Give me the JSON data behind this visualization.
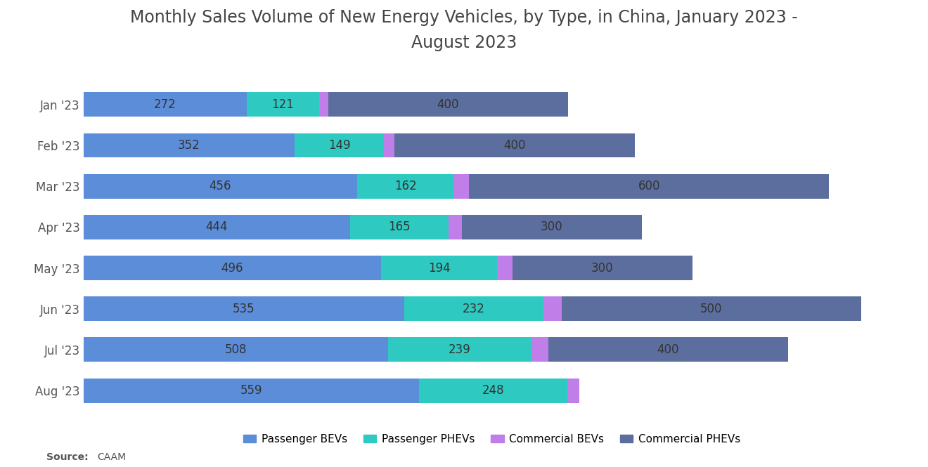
{
  "title": "Monthly Sales Volume of New Energy Vehicles, by Type, in China, January 2023 -\nAugust 2023",
  "months": [
    "Jan '23",
    "Feb '23",
    "Mar '23",
    "Apr '23",
    "May '23",
    "Jun '23",
    "Jul '23",
    "Aug '23"
  ],
  "passenger_bevs": [
    272,
    352,
    456,
    444,
    496,
    535,
    508,
    559
  ],
  "passenger_phevs": [
    121,
    149,
    162,
    165,
    194,
    232,
    239,
    248
  ],
  "commercial_bevs": [
    15,
    18,
    25,
    22,
    25,
    30,
    28,
    20
  ],
  "commercial_phevs": [
    400,
    400,
    600,
    300,
    300,
    500,
    400,
    0
  ],
  "color_passenger_bev": "#5b8dd9",
  "color_passenger_phev": "#2ec9c0",
  "color_commercial_bev": "#c07ee8",
  "color_commercial_phev": "#5b6e9e",
  "background_color": "#ffffff",
  "title_fontsize": 17,
  "label_fontsize": 12,
  "label_color": "#333333",
  "ytick_color": "#555555",
  "source_text": "CAAM",
  "legend_labels": [
    "Passenger BEVs",
    "Passenger PHEVs",
    "Commercial BEVs",
    "Commercial PHEVs"
  ]
}
